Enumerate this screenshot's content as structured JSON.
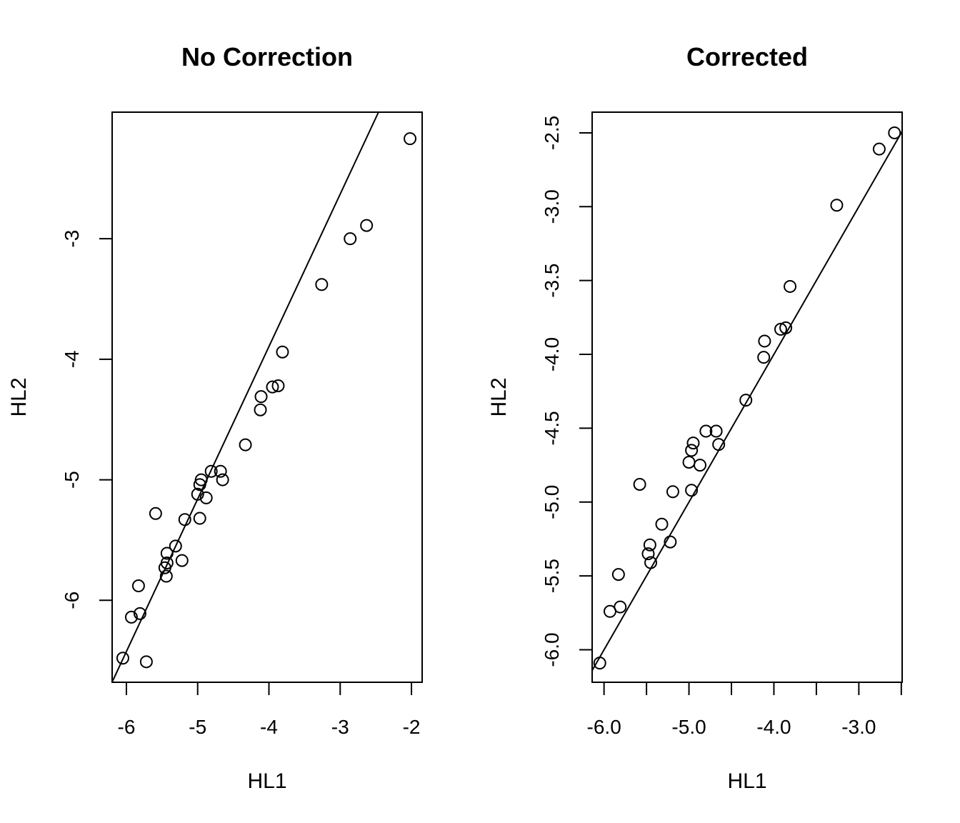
{
  "chart_data": [
    {
      "type": "scatter",
      "title": "No Correction",
      "xlabel": "HL1",
      "ylabel": "HL2",
      "xlim": [
        -6.2,
        -1.85
      ],
      "ylim": [
        -6.68,
        -1.95
      ],
      "xticks": [
        -6,
        -5,
        -4,
        -3,
        -2
      ],
      "xtick_labels": [
        "-6",
        "-5",
        "-4",
        "-3",
        "-2"
      ],
      "yticks": [
        -6,
        -5,
        -4,
        -3
      ],
      "ytick_labels": [
        "-6",
        "-5",
        "-4",
        "-3"
      ],
      "grid": false,
      "reference_line": {
        "slope": 1.265,
        "intercept": 1.165
      },
      "points": [
        [
          -6.05,
          -6.48
        ],
        [
          -5.72,
          -6.51
        ],
        [
          -5.93,
          -6.14
        ],
        [
          -5.81,
          -6.11
        ],
        [
          -5.83,
          -5.88
        ],
        [
          -5.44,
          -5.8
        ],
        [
          -5.46,
          -5.73
        ],
        [
          -5.43,
          -5.69
        ],
        [
          -5.43,
          -5.61
        ],
        [
          -5.22,
          -5.67
        ],
        [
          -5.31,
          -5.55
        ],
        [
          -5.18,
          -5.33
        ],
        [
          -5.59,
          -5.28
        ],
        [
          -4.97,
          -5.32
        ],
        [
          -5.0,
          -5.12
        ],
        [
          -4.88,
          -5.15
        ],
        [
          -4.97,
          -5.04
        ],
        [
          -4.95,
          -5.0
        ],
        [
          -4.81,
          -4.93
        ],
        [
          -4.68,
          -4.93
        ],
        [
          -4.65,
          -5.0
        ],
        [
          -4.33,
          -4.71
        ],
        [
          -4.12,
          -4.42
        ],
        [
          -4.11,
          -4.31
        ],
        [
          -3.95,
          -4.23
        ],
        [
          -3.87,
          -4.22
        ],
        [
          -3.81,
          -3.94
        ],
        [
          -3.26,
          -3.38
        ],
        [
          -2.86,
          -3.0
        ],
        [
          -2.63,
          -2.89
        ],
        [
          -2.02,
          -2.17
        ]
      ]
    },
    {
      "type": "scatter",
      "title": "Corrected",
      "xlabel": "HL1",
      "ylabel": "HL2",
      "xlim": [
        -6.14,
        -2.49
      ],
      "ylim": [
        -6.22,
        -2.36
      ],
      "xticks": [
        -6.0,
        -5.5,
        -5.0,
        -4.5,
        -4.0,
        -3.5,
        -3.0,
        -2.5
      ],
      "xtick_labels": [
        "-6.0",
        "",
        "-5.0",
        "",
        "-4.0",
        "",
        "-3.0",
        ""
      ],
      "yticks": [
        -6.0,
        -5.5,
        -5.0,
        -4.5,
        -4.0,
        -3.5,
        -3.0,
        -2.5
      ],
      "ytick_labels": [
        "-6.0",
        "-5.5",
        "-5.0",
        "-4.5",
        "-4.0",
        "-3.5",
        "-3.0",
        "-2.5"
      ],
      "grid": false,
      "reference_line": {
        "slope": 1.0,
        "intercept": 0.0
      },
      "points": [
        [
          -6.05,
          -6.09
        ],
        [
          -5.93,
          -5.74
        ],
        [
          -5.81,
          -5.71
        ],
        [
          -5.83,
          -5.49
        ],
        [
          -5.58,
          -4.88
        ],
        [
          -5.46,
          -5.29
        ],
        [
          -5.48,
          -5.35
        ],
        [
          -5.45,
          -5.41
        ],
        [
          -5.32,
          -5.15
        ],
        [
          -5.22,
          -5.27
        ],
        [
          -5.19,
          -4.93
        ],
        [
          -4.97,
          -4.92
        ],
        [
          -5.0,
          -4.73
        ],
        [
          -4.87,
          -4.75
        ],
        [
          -4.97,
          -4.65
        ],
        [
          -4.95,
          -4.6
        ],
        [
          -4.8,
          -4.52
        ],
        [
          -4.68,
          -4.52
        ],
        [
          -4.65,
          -4.61
        ],
        [
          -4.33,
          -4.31
        ],
        [
          -4.12,
          -4.02
        ],
        [
          -4.11,
          -3.91
        ],
        [
          -3.92,
          -3.83
        ],
        [
          -3.86,
          -3.82
        ],
        [
          -3.81,
          -3.54
        ],
        [
          -3.26,
          -2.99
        ],
        [
          -2.76,
          -2.61
        ],
        [
          -2.58,
          -2.5
        ]
      ]
    }
  ]
}
